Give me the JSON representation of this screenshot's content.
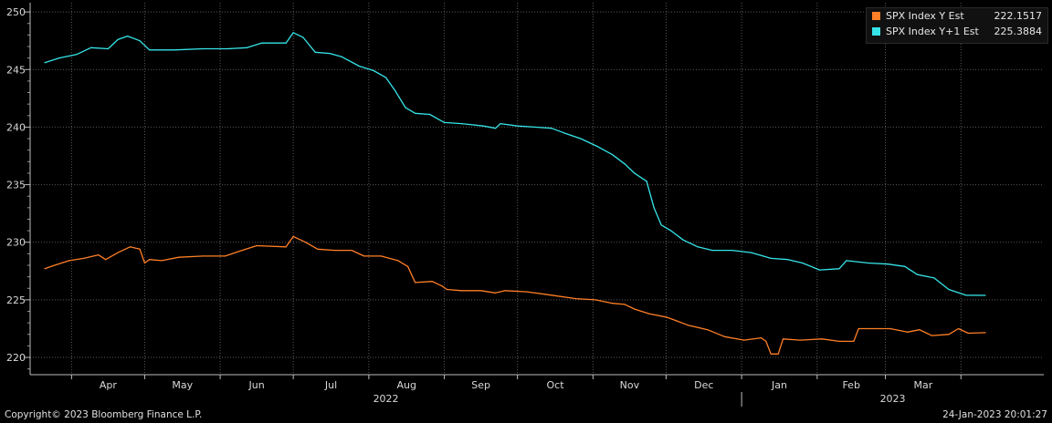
{
  "chart_data": {
    "type": "line",
    "title": "",
    "xlabel": "",
    "ylabel": "",
    "ylim": [
      218.5,
      250.8
    ],
    "y_ticks": [
      220,
      225,
      230,
      235,
      240,
      245,
      250
    ],
    "x_months": [
      "Apr",
      "May",
      "Jun",
      "Jul",
      "Aug",
      "Sep",
      "Oct",
      "Nov",
      "Dec",
      "Jan",
      "Feb",
      "Mar"
    ],
    "x_years": [
      "2022",
      "2023"
    ],
    "grid": true,
    "legend_placement": "top-right",
    "series": [
      {
        "name": "SPX Index Y Est",
        "last_value": "222.1517",
        "color": "#ff7f27",
        "values": [
          [
            "2022-03-21",
            227.7
          ],
          [
            "2022-03-25",
            228.0
          ],
          [
            "2022-03-31",
            228.4
          ],
          [
            "2022-04-06",
            228.6
          ],
          [
            "2022-04-12",
            228.9
          ],
          [
            "2022-04-15",
            228.5
          ],
          [
            "2022-04-20",
            229.1
          ],
          [
            "2022-04-25",
            229.6
          ],
          [
            "2022-04-29",
            229.4
          ],
          [
            "2022-05-01",
            228.2
          ],
          [
            "2022-05-03",
            228.5
          ],
          [
            "2022-05-08",
            228.4
          ],
          [
            "2022-05-15",
            228.7
          ],
          [
            "2022-05-25",
            228.8
          ],
          [
            "2022-06-03",
            228.8
          ],
          [
            "2022-06-10",
            229.3
          ],
          [
            "2022-06-16",
            229.7
          ],
          [
            "2022-06-28",
            229.6
          ],
          [
            "2022-07-01",
            230.5
          ],
          [
            "2022-07-06",
            230.0
          ],
          [
            "2022-07-11",
            229.4
          ],
          [
            "2022-07-18",
            229.3
          ],
          [
            "2022-07-25",
            229.3
          ],
          [
            "2022-07-30",
            228.8
          ],
          [
            "2022-08-06",
            228.8
          ],
          [
            "2022-08-13",
            228.4
          ],
          [
            "2022-08-17",
            227.9
          ],
          [
            "2022-08-20",
            226.5
          ],
          [
            "2022-08-27",
            226.6
          ],
          [
            "2022-08-31",
            226.2
          ],
          [
            "2022-09-02",
            225.9
          ],
          [
            "2022-09-08",
            225.8
          ],
          [
            "2022-09-16",
            225.8
          ],
          [
            "2022-09-22",
            225.6
          ],
          [
            "2022-09-26",
            225.8
          ],
          [
            "2022-10-05",
            225.7
          ],
          [
            "2022-10-15",
            225.4
          ],
          [
            "2022-10-25",
            225.1
          ],
          [
            "2022-11-02",
            225.0
          ],
          [
            "2022-11-09",
            224.7
          ],
          [
            "2022-11-14",
            224.6
          ],
          [
            "2022-11-18",
            224.2
          ],
          [
            "2022-11-24",
            223.8
          ],
          [
            "2022-12-01",
            223.5
          ],
          [
            "2022-12-05",
            223.2
          ],
          [
            "2022-12-10",
            222.8
          ],
          [
            "2022-12-18",
            222.4
          ],
          [
            "2022-12-25",
            221.8
          ],
          [
            "2023-01-02",
            221.5
          ],
          [
            "2023-01-09",
            221.7
          ],
          [
            "2023-01-11",
            221.4
          ],
          [
            "2023-01-13",
            220.3
          ],
          [
            "2023-01-16",
            220.3
          ],
          [
            "2023-01-18",
            221.6
          ],
          [
            "2023-01-25",
            221.5
          ],
          [
            "2023-02-03",
            221.6
          ],
          [
            "2023-02-10",
            221.4
          ],
          [
            "2023-02-16",
            221.4
          ],
          [
            "2023-02-18",
            222.5
          ],
          [
            "2023-02-25",
            222.5
          ],
          [
            "2023-03-03",
            222.5
          ],
          [
            "2023-03-10",
            222.2
          ],
          [
            "2023-03-15",
            222.4
          ],
          [
            "2023-03-20",
            221.9
          ],
          [
            "2023-03-27",
            222.0
          ],
          [
            "2023-03-31",
            222.5
          ],
          [
            "2023-04-04",
            222.1
          ],
          [
            "2023-04-11",
            222.15
          ]
        ]
      },
      {
        "name": "SPX Index Y+1 Est",
        "last_value": "225.3884",
        "color": "#36e4e8",
        "values": [
          [
            "2022-03-21",
            245.6
          ],
          [
            "2022-03-27",
            246.0
          ],
          [
            "2022-04-03",
            246.3
          ],
          [
            "2022-04-09",
            246.9
          ],
          [
            "2022-04-16",
            246.8
          ],
          [
            "2022-04-20",
            247.6
          ],
          [
            "2022-04-24",
            247.9
          ],
          [
            "2022-04-29",
            247.5
          ],
          [
            "2022-05-03",
            246.7
          ],
          [
            "2022-05-13",
            246.7
          ],
          [
            "2022-05-25",
            246.8
          ],
          [
            "2022-06-04",
            246.8
          ],
          [
            "2022-06-12",
            246.9
          ],
          [
            "2022-06-18",
            247.3
          ],
          [
            "2022-06-28",
            247.3
          ],
          [
            "2022-07-01",
            248.2
          ],
          [
            "2022-07-05",
            247.8
          ],
          [
            "2022-07-10",
            246.5
          ],
          [
            "2022-07-16",
            246.4
          ],
          [
            "2022-07-21",
            246.1
          ],
          [
            "2022-07-28",
            245.3
          ],
          [
            "2022-08-03",
            244.9
          ],
          [
            "2022-08-08",
            244.3
          ],
          [
            "2022-08-12",
            243.1
          ],
          [
            "2022-08-16",
            241.7
          ],
          [
            "2022-08-20",
            241.2
          ],
          [
            "2022-08-26",
            241.1
          ],
          [
            "2022-09-01",
            240.4
          ],
          [
            "2022-09-08",
            240.3
          ],
          [
            "2022-09-17",
            240.1
          ],
          [
            "2022-09-22",
            239.9
          ],
          [
            "2022-09-24",
            240.3
          ],
          [
            "2022-10-01",
            240.1
          ],
          [
            "2022-10-08",
            240.0
          ],
          [
            "2022-10-15",
            239.9
          ],
          [
            "2022-10-20",
            239.5
          ],
          [
            "2022-10-27",
            239.0
          ],
          [
            "2022-11-03",
            238.3
          ],
          [
            "2022-11-09",
            237.6
          ],
          [
            "2022-11-14",
            236.8
          ],
          [
            "2022-11-18",
            236.0
          ],
          [
            "2022-11-23",
            235.3
          ],
          [
            "2022-11-26",
            233.0
          ],
          [
            "2022-11-29",
            231.5
          ],
          [
            "2022-12-03",
            231.0
          ],
          [
            "2022-12-08",
            230.2
          ],
          [
            "2022-12-14",
            229.6
          ],
          [
            "2022-12-20",
            229.3
          ],
          [
            "2022-12-28",
            229.3
          ],
          [
            "2023-01-05",
            229.1
          ],
          [
            "2023-01-13",
            228.6
          ],
          [
            "2023-01-20",
            228.5
          ],
          [
            "2023-01-26",
            228.2
          ],
          [
            "2023-02-02",
            227.6
          ],
          [
            "2023-02-10",
            227.7
          ],
          [
            "2023-02-13",
            228.4
          ],
          [
            "2023-02-22",
            228.2
          ],
          [
            "2023-03-02",
            228.1
          ],
          [
            "2023-03-09",
            227.9
          ],
          [
            "2023-03-14",
            227.2
          ],
          [
            "2023-03-21",
            226.9
          ],
          [
            "2023-03-27",
            225.9
          ],
          [
            "2023-04-03",
            225.4
          ],
          [
            "2023-04-11",
            225.39
          ]
        ]
      }
    ]
  },
  "footer": {
    "copyright": "Copyright© 2023 Bloomberg Finance L.P.",
    "timestamp": "24-Jan-2023 20:01:27"
  }
}
